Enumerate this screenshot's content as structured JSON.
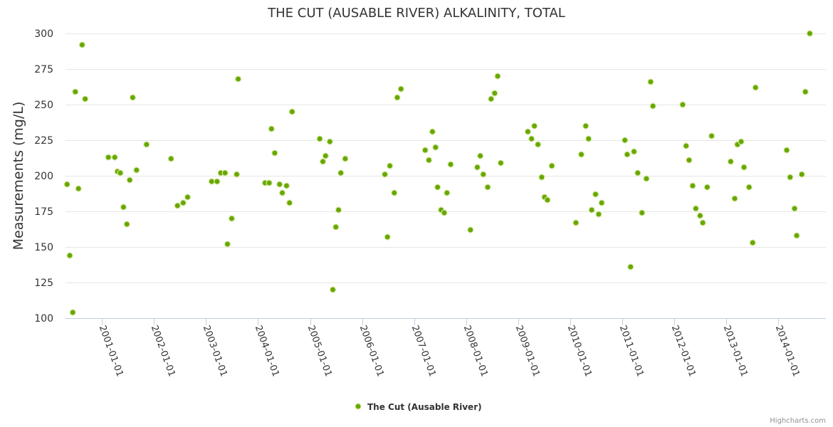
{
  "chart_data": {
    "type": "scatter",
    "title": "THE CUT (AUSABLE RIVER) ALKALINITY, TOTAL",
    "xlabel": "",
    "ylabel": "Measurements (mg/L)",
    "ylim": [
      100,
      300
    ],
    "yticks": [
      100,
      125,
      150,
      175,
      200,
      225,
      250,
      275,
      300
    ],
    "xlim": [
      "2000-04-20",
      "2014-12-01"
    ],
    "xticks": [
      "2001-01-01",
      "2002-01-01",
      "2003-01-01",
      "2004-01-01",
      "2005-01-01",
      "2006-01-01",
      "2007-01-01",
      "2008-01-01",
      "2009-01-01",
      "2010-01-01",
      "2011-01-01",
      "2012-01-01",
      "2013-01-01",
      "2014-01-01"
    ],
    "grid": true,
    "legend_position": "bottom-center",
    "series": [
      {
        "name": "The Cut (Ausable River)",
        "color": "#66a800",
        "points": [
          [
            "2000-05-01",
            194
          ],
          [
            "2000-05-20",
            144
          ],
          [
            "2000-06-10",
            104
          ],
          [
            "2000-06-28",
            259
          ],
          [
            "2000-07-20",
            191
          ],
          [
            "2000-08-15",
            292
          ],
          [
            "2000-09-05",
            254
          ],
          [
            "2001-02-15",
            213
          ],
          [
            "2001-04-01",
            213
          ],
          [
            "2001-04-20",
            203
          ],
          [
            "2001-05-10",
            202
          ],
          [
            "2001-06-01",
            178
          ],
          [
            "2001-06-25",
            166
          ],
          [
            "2001-07-15",
            197
          ],
          [
            "2001-08-05",
            255
          ],
          [
            "2001-09-01",
            204
          ],
          [
            "2001-11-10",
            222
          ],
          [
            "2002-05-01",
            212
          ],
          [
            "2002-06-15",
            179
          ],
          [
            "2002-07-25",
            181
          ],
          [
            "2002-08-25",
            185
          ],
          [
            "2003-02-10",
            196
          ],
          [
            "2003-03-20",
            196
          ],
          [
            "2003-04-15",
            202
          ],
          [
            "2003-05-15",
            202
          ],
          [
            "2003-06-01",
            152
          ],
          [
            "2003-07-01",
            170
          ],
          [
            "2003-08-05",
            201
          ],
          [
            "2003-08-15",
            268
          ],
          [
            "2004-02-20",
            195
          ],
          [
            "2004-03-20",
            195
          ],
          [
            "2004-04-05",
            233
          ],
          [
            "2004-04-28",
            216
          ],
          [
            "2004-06-01",
            194
          ],
          [
            "2004-06-20",
            188
          ],
          [
            "2004-07-20",
            193
          ],
          [
            "2004-08-10",
            181
          ],
          [
            "2004-08-28",
            245
          ],
          [
            "2005-03-10",
            226
          ],
          [
            "2005-04-01",
            210
          ],
          [
            "2005-04-20",
            214
          ],
          [
            "2005-05-20",
            224
          ],
          [
            "2005-06-10",
            120
          ],
          [
            "2005-07-01",
            164
          ],
          [
            "2005-07-20",
            176
          ],
          [
            "2005-08-05",
            202
          ],
          [
            "2005-09-05",
            212
          ],
          [
            "2006-06-10",
            201
          ],
          [
            "2006-06-28",
            157
          ],
          [
            "2006-07-15",
            207
          ],
          [
            "2006-08-15",
            188
          ],
          [
            "2006-09-05",
            255
          ],
          [
            "2006-10-01",
            261
          ],
          [
            "2007-03-20",
            218
          ],
          [
            "2007-04-15",
            211
          ],
          [
            "2007-05-10",
            231
          ],
          [
            "2007-06-01",
            220
          ],
          [
            "2007-06-15",
            192
          ],
          [
            "2007-07-10",
            176
          ],
          [
            "2007-08-01",
            174
          ],
          [
            "2007-08-20",
            188
          ],
          [
            "2007-09-15",
            208
          ],
          [
            "2008-02-01",
            162
          ],
          [
            "2008-03-20",
            206
          ],
          [
            "2008-04-10",
            214
          ],
          [
            "2008-05-01",
            201
          ],
          [
            "2008-06-01",
            192
          ],
          [
            "2008-06-25",
            254
          ],
          [
            "2008-07-20",
            258
          ],
          [
            "2008-08-10",
            270
          ],
          [
            "2008-09-01",
            209
          ],
          [
            "2009-03-10",
            231
          ],
          [
            "2009-04-05",
            226
          ],
          [
            "2009-04-25",
            235
          ],
          [
            "2009-05-20",
            222
          ],
          [
            "2009-06-15",
            199
          ],
          [
            "2009-07-05",
            185
          ],
          [
            "2009-07-25",
            183
          ],
          [
            "2009-08-25",
            207
          ],
          [
            "2010-02-10",
            167
          ],
          [
            "2010-03-20",
            215
          ],
          [
            "2010-04-20",
            235
          ],
          [
            "2010-05-10",
            226
          ],
          [
            "2010-06-01",
            176
          ],
          [
            "2010-06-28",
            187
          ],
          [
            "2010-07-20",
            173
          ],
          [
            "2010-08-10",
            181
          ],
          [
            "2011-01-20",
            225
          ],
          [
            "2011-02-05",
            215
          ],
          [
            "2011-03-01",
            136
          ],
          [
            "2011-03-25",
            217
          ],
          [
            "2011-04-20",
            202
          ],
          [
            "2011-05-20",
            174
          ],
          [
            "2011-06-20",
            198
          ],
          [
            "2011-07-20",
            266
          ],
          [
            "2011-08-05",
            249
          ],
          [
            "2012-03-01",
            250
          ],
          [
            "2012-03-25",
            221
          ],
          [
            "2012-04-15",
            211
          ],
          [
            "2012-05-10",
            193
          ],
          [
            "2012-06-01",
            177
          ],
          [
            "2012-07-01",
            172
          ],
          [
            "2012-07-20",
            167
          ],
          [
            "2012-08-20",
            192
          ],
          [
            "2012-09-20",
            228
          ],
          [
            "2013-02-01",
            210
          ],
          [
            "2013-03-01",
            184
          ],
          [
            "2013-03-20",
            222
          ],
          [
            "2013-04-15",
            224
          ],
          [
            "2013-05-05",
            206
          ],
          [
            "2013-06-10",
            192
          ],
          [
            "2013-07-05",
            153
          ],
          [
            "2013-07-25",
            262
          ],
          [
            "2014-03-01",
            218
          ],
          [
            "2014-03-25",
            199
          ],
          [
            "2014-04-25",
            177
          ],
          [
            "2014-05-10",
            158
          ],
          [
            "2014-06-15",
            201
          ],
          [
            "2014-07-10",
            259
          ],
          [
            "2014-08-10",
            300
          ]
        ]
      }
    ],
    "credits": "Highcharts.com"
  }
}
